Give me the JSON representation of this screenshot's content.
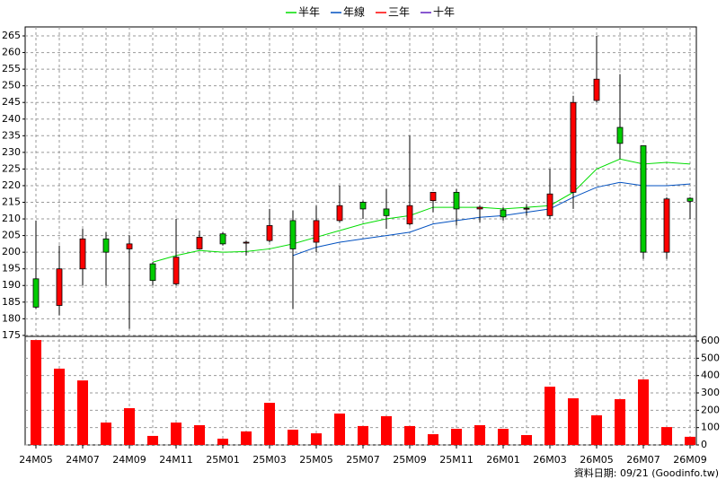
{
  "chart_data": {
    "type": "candlestick",
    "categories": [
      "24M05",
      null,
      "24M07",
      null,
      "24M09",
      null,
      "24M11",
      null,
      "25M01",
      null,
      "25M03",
      null,
      "25M05",
      null,
      "25M07",
      null,
      "25M09",
      null,
      "25M11",
      null,
      "26M01",
      null,
      "26M03",
      null,
      "26M05",
      null,
      "26M07",
      null,
      "26M09"
    ],
    "open": [
      192,
      184,
      195,
      204,
      201,
      196.5,
      190.5,
      201,
      205.5,
      202.8,
      203.5,
      209.5,
      203,
      209.5,
      215,
      213,
      208.5,
      215.5,
      218,
      213,
      212.7,
      213,
      211,
      218,
      245.6,
      237.5,
      232,
      200,
      216.2
    ],
    "high": [
      209.5,
      202,
      207,
      206,
      205,
      197,
      210,
      206.5,
      206,
      203.5,
      213,
      212.5,
      214,
      220,
      215.5,
      219,
      235,
      218,
      219,
      214,
      213.5,
      214.5,
      225,
      247,
      265,
      253.5,
      232,
      216.5,
      216.5
    ],
    "low": [
      183,
      181,
      190,
      190,
      177,
      190,
      190,
      201,
      202,
      199,
      203,
      183,
      200,
      209,
      210,
      207,
      208,
      212,
      208,
      209,
      209.5,
      211,
      210,
      213,
      245,
      228,
      198,
      198,
      210
    ],
    "close": [
      183.5,
      195,
      204,
      200,
      202.5,
      191.5,
      198.5,
      204.5,
      202.5,
      203,
      208,
      201,
      209.5,
      214,
      213,
      211,
      214,
      218,
      213,
      213.5,
      210.6,
      213.2,
      217.5,
      245,
      252,
      232.7,
      200,
      216,
      215.3
    ],
    "up_color": "#ff0000",
    "down_color": "#00cc00",
    "ylim": [
      174.7,
      267.7
    ],
    "yticks": [
      175,
      180,
      185,
      190,
      195,
      200,
      205,
      210,
      215,
      220,
      225,
      230,
      235,
      240,
      245,
      250,
      255,
      260,
      265
    ],
    "grid": true,
    "lines": [
      {
        "name": "半年",
        "color": "#00dd00",
        "values": [
          null,
          null,
          null,
          null,
          null,
          197,
          199,
          200.5,
          200,
          200.2,
          201,
          202.5,
          204.5,
          206.5,
          208.5,
          210,
          211,
          213.5,
          213.5,
          213.5,
          213,
          213.5,
          214,
          218,
          225,
          228,
          226.5,
          227,
          226.5
        ]
      },
      {
        "name": "年線",
        "color": "#0050c0",
        "values": [
          null,
          null,
          null,
          null,
          null,
          null,
          null,
          null,
          null,
          null,
          null,
          199,
          201.5,
          203,
          204,
          205,
          206,
          208.5,
          209.5,
          210.5,
          211,
          212,
          213,
          216.5,
          219.5,
          221,
          220,
          220,
          220.5
        ]
      },
      {
        "name": "三年",
        "color": "#ff0000",
        "values": [
          null,
          null,
          null,
          null,
          null,
          null,
          null,
          null,
          null,
          null,
          null,
          null,
          null,
          null,
          null,
          null,
          null,
          null,
          null,
          null,
          null,
          null,
          null,
          null,
          null,
          null,
          null,
          null,
          null
        ]
      },
      {
        "name": "十年",
        "color": "#6020c0",
        "values": [
          null,
          null,
          null,
          null,
          null,
          null,
          null,
          null,
          null,
          null,
          null,
          null,
          null,
          null,
          null,
          null,
          null,
          null,
          null,
          null,
          null,
          null,
          null,
          null,
          null,
          null,
          null,
          null,
          null
        ]
      }
    ],
    "volume": {
      "type": "bar",
      "color": "#ff0000",
      "values": [
        605,
        440,
        372,
        129,
        212,
        52,
        129,
        114,
        36,
        78,
        243,
        88,
        67,
        181,
        109,
        166,
        109,
        62,
        93,
        114,
        93,
        57,
        336,
        269,
        171,
        264,
        378,
        103,
        47
      ],
      "ylim": [
        0,
        626
      ],
      "yticks": [
        0,
        100,
        200,
        300,
        400,
        500,
        600
      ]
    },
    "note": "資料日期: 09/21  (Goodinfo.tw)"
  }
}
